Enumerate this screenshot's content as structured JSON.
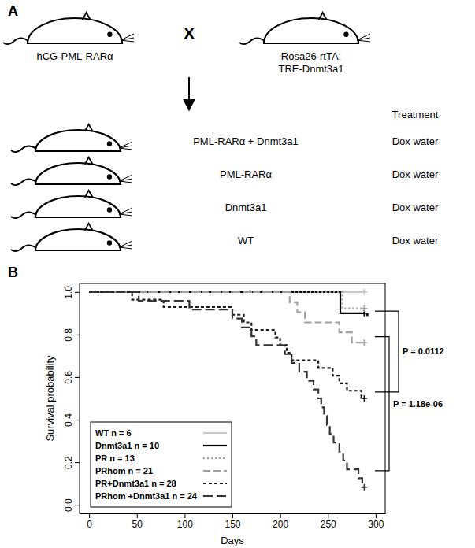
{
  "diagram": {
    "label": "A",
    "parents": [
      {
        "lines": [
          "hCG-PML-RARα"
        ]
      },
      {
        "lines": [
          "Rosa26-rtTA;",
          "TRE-Dnmt3a1"
        ]
      }
    ],
    "cross": "X",
    "header": "Treatment",
    "rows": [
      {
        "genotype": "PML-RARα + Dnmt3a1",
        "treatment": "Dox water"
      },
      {
        "genotype": "PML-RARα",
        "treatment": "Dox water"
      },
      {
        "genotype": "Dnmt3a1",
        "treatment": "Dox water"
      },
      {
        "genotype": "WT",
        "treatment": "Dox water"
      }
    ]
  },
  "chart_data": {
    "label": "B",
    "type": "step",
    "xlabel": "Days",
    "ylabel": "Survival probability",
    "xlim": [
      -10,
      310
    ],
    "xticks": [
      0,
      50,
      100,
      150,
      200,
      250,
      300
    ],
    "ylim": [
      -0.04,
      1.04
    ],
    "yticks": [
      {
        "value": 0,
        "label": "0.0"
      },
      0.2,
      0.4,
      0.6,
      0.8,
      {
        "value": 1,
        "label": "1.0"
      }
    ],
    "grid": false,
    "legend": "bottom-left",
    "series": [
      {
        "name": "WT n = 6",
        "color": "#c8c8c8",
        "line_style": "solid",
        "marker": "plus",
        "x": [
          0,
          288
        ],
        "values": [
          1,
          1
        ]
      },
      {
        "name": "Dnmt3a1 n = 10",
        "color": "#000000",
        "line_style": "solid",
        "marker": "plus",
        "x": [
          0,
          263,
          288
        ],
        "values": [
          1,
          0.9,
          0.9
        ]
      },
      {
        "name": "PR n = 13",
        "color": "#a0a0a0",
        "line_style": "dotted",
        "marker": "plus",
        "x": [
          0,
          265,
          288
        ],
        "values": [
          1,
          0.923,
          0.923
        ]
      },
      {
        "name": "PRhom n = 21",
        "color": "#a0a0a0",
        "line_style": "longdash",
        "marker": "plus",
        "x": [
          0,
          210,
          218,
          226,
          262,
          275,
          288
        ],
        "values": [
          1,
          0.952,
          0.905,
          0.857,
          0.81,
          0.762,
          0.762
        ]
      },
      {
        "name": "PR+Dnmt3a1 n = 28",
        "color": "#1a1a1a",
        "line_style": "shortdash",
        "marker": "plus",
        "x": [
          0,
          45,
          78,
          150,
          162,
          170,
          195,
          200,
          207,
          212,
          240,
          255,
          262,
          270,
          285,
          288
        ],
        "values": [
          1,
          0.964,
          0.929,
          0.893,
          0.857,
          0.821,
          0.786,
          0.75,
          0.714,
          0.679,
          0.643,
          0.607,
          0.571,
          0.536,
          0.5,
          0.5
        ]
      },
      {
        "name": "PRhom +Dnmt3a1 n = 24",
        "color": "#333333",
        "line_style": "dashed",
        "marker": "plus",
        "x": [
          0,
          52,
          105,
          150,
          160,
          170,
          175,
          205,
          212,
          220,
          228,
          235,
          240,
          243,
          246,
          249,
          252,
          256,
          262,
          266,
          270,
          282,
          286,
          288
        ],
        "values": [
          1,
          0.958,
          0.917,
          0.875,
          0.833,
          0.792,
          0.75,
          0.708,
          0.667,
          0.625,
          0.583,
          0.542,
          0.5,
          0.458,
          0.417,
          0.375,
          0.333,
          0.292,
          0.25,
          0.208,
          0.167,
          0.125,
          0.083,
          0.083
        ]
      }
    ],
    "annotations": [
      {
        "text": "P = 0.0112",
        "y": [
          0.91,
          0.53
        ]
      },
      {
        "text": "P = 1.18e-06",
        "y": [
          0.79,
          0.16
        ]
      },
      {
        "text": "*",
        "x": 291,
        "y": 0.9
      }
    ]
  }
}
